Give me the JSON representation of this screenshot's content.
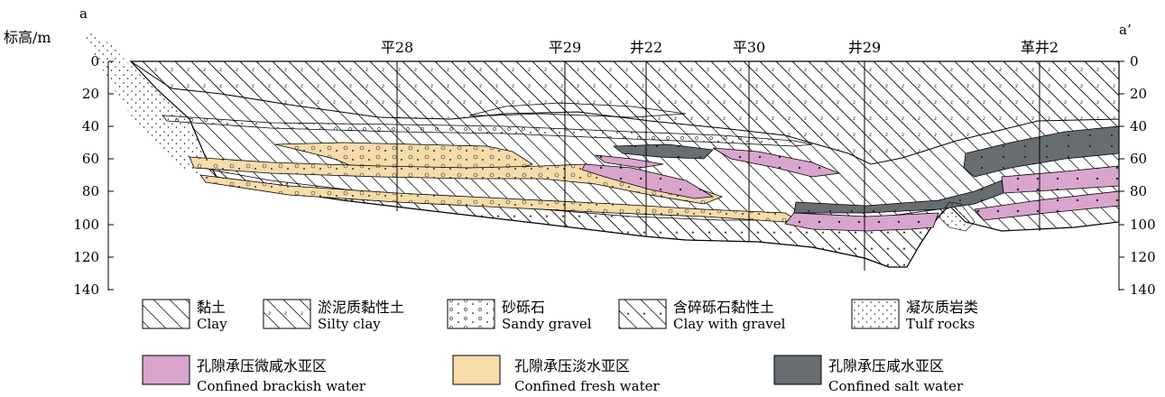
{
  "section": {
    "start_label": "a",
    "end_label": "a’",
    "axis_title": "标高/m",
    "y_ticks": [
      "0",
      "20",
      "40",
      "60",
      "80",
      "100",
      "120",
      "140"
    ]
  },
  "wells": [
    "平28",
    "平29",
    "井22",
    "平30",
    "井29",
    "革井2"
  ],
  "legend": {
    "lithology": [
      {
        "cn": "黏土",
        "en": "Clay"
      },
      {
        "cn": "淤泥质黏性土",
        "en": "Silty clay"
      },
      {
        "cn": "砂砾石",
        "en": "Sandy gravel"
      },
      {
        "cn": "含碎砾石黏性土",
        "en": "Clay with gravel"
      },
      {
        "cn": "凝灰质岩类",
        "en": "Tulf rocks"
      }
    ],
    "water": [
      {
        "cn": "孔隙承压微咸水亚区",
        "en": "Confined brackish water",
        "color": "#d9a5cd"
      },
      {
        "cn": "孔隙承压淡水亚区",
        "en": "Confined fresh water",
        "color": "#f7dca9"
      },
      {
        "cn": "孔隙承压咸水亚区",
        "en": "Confined salt water",
        "color": "#676d70"
      }
    ]
  }
}
